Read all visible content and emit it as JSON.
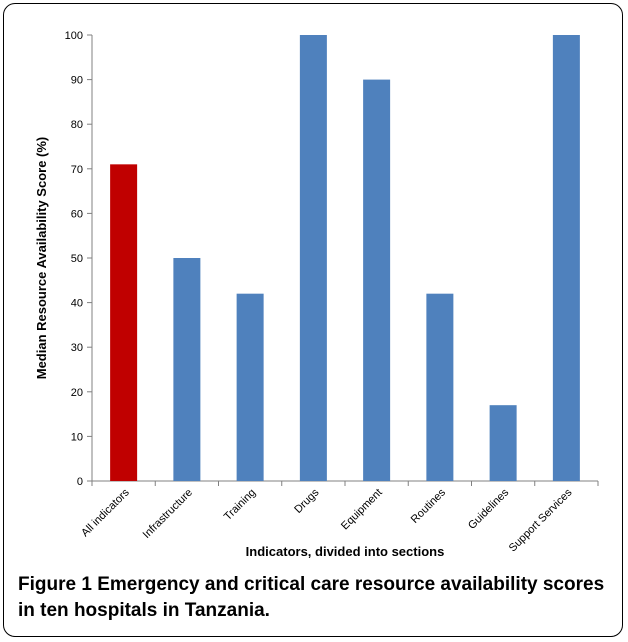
{
  "chart_data": {
    "type": "bar",
    "categories": [
      "All indicators",
      "Infrastructure",
      "Training",
      "Drugs",
      "Equipment",
      "Routines",
      "Guidelines",
      "Support Services"
    ],
    "values": [
      71,
      50,
      42,
      100,
      90,
      42,
      17,
      100
    ],
    "colors": [
      "#c00000",
      "#4f81bd",
      "#4f81bd",
      "#4f81bd",
      "#4f81bd",
      "#4f81bd",
      "#4f81bd",
      "#4f81bd"
    ],
    "title": "",
    "xlabel": "Indicators, divided into sections",
    "ylabel": "Median Resource Availability Score (%)",
    "ylim": [
      0,
      100
    ],
    "yticks": [
      0,
      10,
      20,
      30,
      40,
      50,
      60,
      70,
      80,
      90,
      100
    ],
    "grid": false,
    "legend": "none"
  },
  "caption": {
    "label": "Figure 1",
    "text": "Emergency and critical care resource availability scores in ten hospitals in Tanzania."
  }
}
